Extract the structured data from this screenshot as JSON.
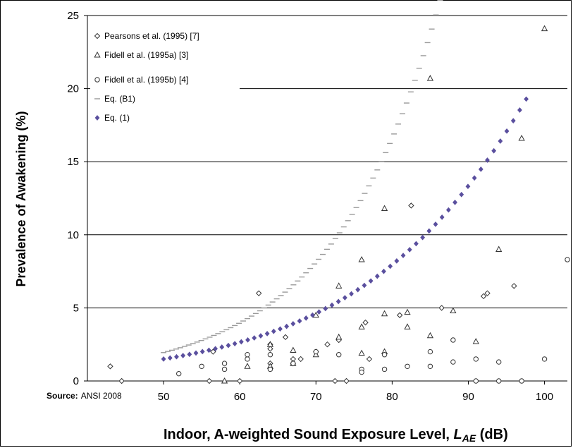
{
  "chart_data": {
    "type": "scatter",
    "xlabel_main": "Indoor, A-weighted Sound Exposure Level, ",
    "xlabel_var": "L",
    "xlabel_sub": "AE",
    "xlabel_unit": " (dB)",
    "ylabel": "Prevalence of Awakening (%)",
    "xlim": [
      40,
      103
    ],
    "ylim": [
      0,
      25
    ],
    "x_ticks": [
      50,
      60,
      70,
      80,
      90,
      100
    ],
    "y_ticks": [
      0,
      5,
      10,
      15,
      20,
      25
    ],
    "grid": "horizontal",
    "legend_position": "top-left",
    "series": [
      {
        "name": "Pearsons et al. (1995) [7]",
        "marker": "diamond",
        "points": [
          [
            43,
            1.0
          ],
          [
            44.5,
            0
          ],
          [
            56,
            0
          ],
          [
            56.5,
            2.0
          ],
          [
            60,
            0
          ],
          [
            62.5,
            6.0
          ],
          [
            64,
            2.5
          ],
          [
            64,
            2.2
          ],
          [
            64,
            1.2
          ],
          [
            66,
            3.0
          ],
          [
            67,
            1.5
          ],
          [
            67,
            1.2
          ],
          [
            68,
            1.5
          ],
          [
            70,
            2.0
          ],
          [
            71.5,
            2.5
          ],
          [
            72.5,
            0
          ],
          [
            73,
            2.8
          ],
          [
            74,
            0
          ],
          [
            76.5,
            4.0
          ],
          [
            77,
            1.5
          ],
          [
            81,
            4.5
          ],
          [
            82.5,
            12.0
          ],
          [
            86.5,
            5.0
          ],
          [
            92,
            5.8
          ],
          [
            92.5,
            6.0
          ],
          [
            96,
            6.5
          ]
        ]
      },
      {
        "name": "Fidell et al. (1995a) [3]",
        "marker": "triangle",
        "points": [
          [
            58,
            0
          ],
          [
            61,
            1.0
          ],
          [
            64,
            1.0
          ],
          [
            64,
            2.5
          ],
          [
            67,
            1.2
          ],
          [
            67,
            2.1
          ],
          [
            70,
            4.5
          ],
          [
            70,
            1.8
          ],
          [
            73,
            6.5
          ],
          [
            73,
            3.0
          ],
          [
            76,
            8.3
          ],
          [
            76,
            3.7
          ],
          [
            76,
            1.9
          ],
          [
            79,
            11.8
          ],
          [
            79,
            4.6
          ],
          [
            79,
            2.0
          ],
          [
            82,
            4.7
          ],
          [
            82,
            3.7
          ],
          [
            85,
            20.7
          ],
          [
            85,
            3.1
          ],
          [
            88,
            4.8
          ],
          [
            91,
            2.7
          ],
          [
            94,
            9.0
          ],
          [
            97,
            16.6
          ],
          [
            100,
            24.1
          ]
        ]
      },
      {
        "name": "Fidell et al. (1995b) [4]",
        "marker": "circle",
        "points": [
          [
            52,
            0.5
          ],
          [
            55,
            1.0
          ],
          [
            58,
            0.8
          ],
          [
            58,
            1.2
          ],
          [
            61,
            1.5
          ],
          [
            61,
            1.8
          ],
          [
            64,
            0.8
          ],
          [
            64,
            1.8
          ],
          [
            67,
            1.2
          ],
          [
            70,
            2.0
          ],
          [
            73,
            1.8
          ],
          [
            76,
            0.8
          ],
          [
            76,
            0.6
          ],
          [
            79,
            0.8
          ],
          [
            79,
            1.8
          ],
          [
            82,
            1.0
          ],
          [
            85,
            2.0
          ],
          [
            85,
            1.0
          ],
          [
            88,
            2.8
          ],
          [
            88,
            1.3
          ],
          [
            91,
            1.5
          ],
          [
            91,
            0
          ],
          [
            94,
            1.3
          ],
          [
            94,
            0
          ],
          [
            97,
            0
          ],
          [
            100,
            1.5
          ],
          [
            103,
            8.3
          ]
        ]
      },
      {
        "name": "Eq. (B1)",
        "marker": "dash-line",
        "equation": "exp",
        "x_range": [
          50,
          98
        ],
        "params": {
          "a": 0.5365,
          "b": 0.0715
        }
      },
      {
        "name": "Eq. (1)",
        "marker": "star-line",
        "equation": "logistic",
        "x_range": [
          50,
          98
        ],
        "params": {
          "c": 7.0729,
          "d": 0.0578
        }
      }
    ]
  },
  "source": {
    "label": "Source:",
    "value": "ANSI 2008"
  },
  "colors": {
    "markers": "#333333",
    "eq_b1": "#9a9a9a",
    "eq_1": "#5a4f9e",
    "grid": "#000000"
  }
}
